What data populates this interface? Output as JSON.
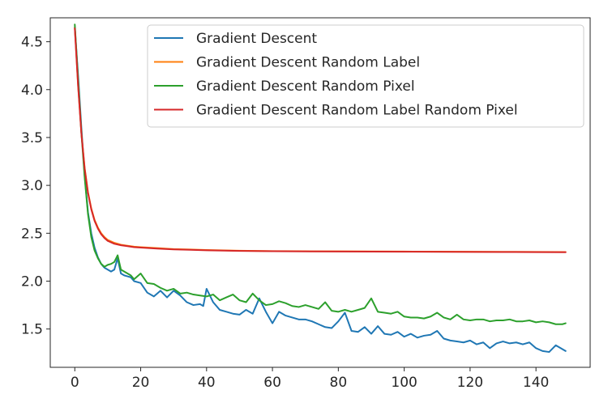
{
  "chart_data": {
    "type": "line",
    "title": "",
    "xlabel": "",
    "ylabel": "",
    "xlim": [
      -7.45,
      156.45
    ],
    "ylim": [
      1.1,
      4.75
    ],
    "xticks": [
      0,
      20,
      40,
      60,
      80,
      100,
      120,
      140
    ],
    "yticks": [
      1.5,
      2.0,
      2.5,
      3.0,
      3.5,
      4.0,
      4.5
    ],
    "xtick_labels": [
      "0",
      "20",
      "40",
      "60",
      "80",
      "100",
      "120",
      "140"
    ],
    "ytick_labels": [
      "1.5",
      "2.0",
      "2.5",
      "3.0",
      "3.5",
      "4.0",
      "4.5"
    ],
    "grid": false,
    "legend_position": "top-right",
    "series": [
      {
        "name": "Gradient Descent",
        "color": "#1f77b4",
        "x": [
          0,
          1,
          2,
          3,
          4,
          5,
          6,
          7,
          8,
          9,
          10,
          11,
          12,
          13,
          14,
          15,
          16,
          17,
          18,
          20,
          22,
          24,
          26,
          28,
          30,
          32,
          34,
          36,
          38,
          39,
          40,
          41,
          42,
          44,
          46,
          48,
          50,
          52,
          54,
          56,
          58,
          60,
          62,
          64,
          66,
          68,
          70,
          72,
          74,
          76,
          78,
          80,
          82,
          84,
          86,
          88,
          90,
          92,
          94,
          96,
          98,
          100,
          102,
          104,
          106,
          108,
          110,
          112,
          114,
          116,
          118,
          120,
          122,
          124,
          126,
          128,
          130,
          132,
          134,
          136,
          138,
          140,
          142,
          144,
          146,
          148,
          149
        ],
        "y": [
          4.65,
          4.15,
          3.6,
          3.1,
          2.72,
          2.5,
          2.35,
          2.25,
          2.18,
          2.14,
          2.12,
          2.1,
          2.12,
          2.24,
          2.08,
          2.06,
          2.05,
          2.04,
          2.0,
          1.98,
          1.88,
          1.84,
          1.9,
          1.83,
          1.9,
          1.85,
          1.78,
          1.75,
          1.76,
          1.74,
          1.92,
          1.85,
          1.78,
          1.7,
          1.68,
          1.66,
          1.65,
          1.7,
          1.66,
          1.82,
          1.68,
          1.56,
          1.68,
          1.64,
          1.62,
          1.6,
          1.6,
          1.58,
          1.55,
          1.52,
          1.51,
          1.58,
          1.67,
          1.48,
          1.47,
          1.52,
          1.45,
          1.53,
          1.45,
          1.44,
          1.47,
          1.42,
          1.45,
          1.41,
          1.43,
          1.44,
          1.48,
          1.4,
          1.38,
          1.37,
          1.36,
          1.38,
          1.34,
          1.36,
          1.3,
          1.35,
          1.37,
          1.35,
          1.36,
          1.34,
          1.36,
          1.3,
          1.27,
          1.26,
          1.33,
          1.29,
          1.27
        ]
      },
      {
        "name": "Gradient Descent Random Label",
        "color": "#ff7f0e",
        "x": [
          0,
          1,
          2,
          3,
          4,
          5,
          6,
          7,
          8,
          9,
          10,
          12,
          14,
          16,
          18,
          20,
          25,
          30,
          35,
          40,
          50,
          60,
          70,
          80,
          90,
          100,
          110,
          120,
          130,
          140,
          149
        ],
        "y": [
          4.65,
          4.05,
          3.55,
          3.18,
          2.93,
          2.76,
          2.64,
          2.56,
          2.5,
          2.46,
          2.43,
          2.4,
          2.38,
          2.37,
          2.36,
          2.355,
          2.345,
          2.335,
          2.33,
          2.325,
          2.318,
          2.314,
          2.312,
          2.311,
          2.31,
          2.309,
          2.308,
          2.307,
          2.306,
          2.305,
          2.304
        ]
      },
      {
        "name": "Gradient Descent Random Pixel",
        "color": "#2ca02c",
        "x": [
          0,
          1,
          2,
          3,
          4,
          5,
          6,
          7,
          8,
          9,
          10,
          11,
          12,
          13,
          14,
          15,
          16,
          17,
          18,
          20,
          22,
          24,
          26,
          28,
          30,
          32,
          34,
          36,
          38,
          40,
          42,
          44,
          46,
          48,
          50,
          52,
          54,
          56,
          58,
          60,
          62,
          64,
          66,
          68,
          70,
          72,
          74,
          76,
          78,
          80,
          82,
          84,
          86,
          88,
          90,
          92,
          94,
          96,
          98,
          100,
          102,
          104,
          106,
          108,
          110,
          112,
          114,
          116,
          118,
          120,
          122,
          124,
          126,
          128,
          130,
          132,
          134,
          136,
          138,
          140,
          142,
          144,
          146,
          148,
          149
        ],
        "y": [
          4.68,
          4.1,
          3.55,
          3.08,
          2.7,
          2.46,
          2.32,
          2.24,
          2.18,
          2.15,
          2.17,
          2.18,
          2.2,
          2.27,
          2.12,
          2.1,
          2.08,
          2.06,
          2.02,
          2.08,
          1.98,
          1.97,
          1.93,
          1.9,
          1.92,
          1.87,
          1.88,
          1.86,
          1.85,
          1.84,
          1.86,
          1.8,
          1.83,
          1.86,
          1.8,
          1.78,
          1.87,
          1.8,
          1.75,
          1.76,
          1.79,
          1.77,
          1.74,
          1.73,
          1.75,
          1.73,
          1.71,
          1.78,
          1.69,
          1.68,
          1.7,
          1.68,
          1.7,
          1.72,
          1.82,
          1.68,
          1.67,
          1.66,
          1.68,
          1.63,
          1.62,
          1.62,
          1.61,
          1.63,
          1.67,
          1.62,
          1.6,
          1.65,
          1.6,
          1.59,
          1.6,
          1.6,
          1.58,
          1.59,
          1.59,
          1.6,
          1.58,
          1.58,
          1.59,
          1.57,
          1.58,
          1.57,
          1.55,
          1.55,
          1.56
        ]
      },
      {
        "name": "Gradient Descent Random Label Random Pixel",
        "color": "#d62728",
        "x": [
          0,
          1,
          2,
          3,
          4,
          5,
          6,
          7,
          8,
          9,
          10,
          12,
          14,
          16,
          18,
          20,
          25,
          30,
          35,
          40,
          50,
          60,
          70,
          80,
          90,
          100,
          110,
          120,
          130,
          140,
          149
        ],
        "y": [
          4.64,
          4.04,
          3.54,
          3.17,
          2.92,
          2.75,
          2.63,
          2.55,
          2.49,
          2.45,
          2.42,
          2.39,
          2.375,
          2.365,
          2.355,
          2.35,
          2.34,
          2.332,
          2.327,
          2.322,
          2.316,
          2.312,
          2.31,
          2.309,
          2.308,
          2.307,
          2.306,
          2.305,
          2.304,
          2.303,
          2.302
        ]
      }
    ]
  }
}
